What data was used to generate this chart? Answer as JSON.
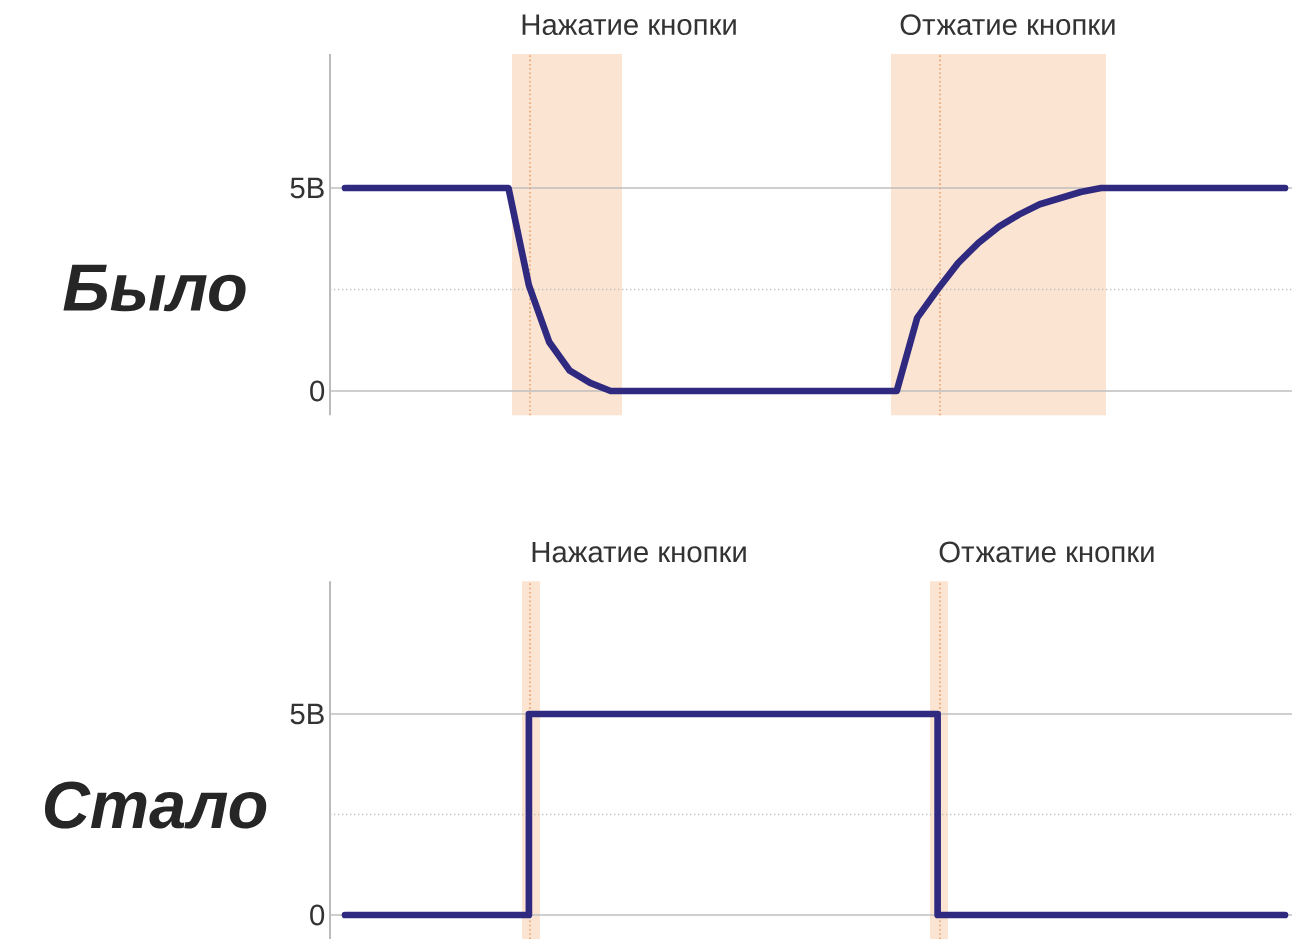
{
  "chart_data": [
    {
      "type": "line",
      "ylabel": "Было",
      "color": "#2f2a80",
      "grid": "y",
      "tick_labels": "y",
      "categories": [
        null,
        null,
        null,
        null,
        null,
        null,
        null,
        null,
        null,
        null,
        null,
        null,
        null,
        null,
        null,
        null,
        null,
        null,
        null,
        null,
        null,
        null,
        null,
        null,
        null,
        null,
        null,
        null,
        null,
        null,
        null,
        null,
        null,
        null,
        null,
        null,
        null,
        null,
        null,
        null,
        null,
        null,
        null,
        null,
        null,
        null,
        null
      ],
      "values": [
        5,
        5,
        5,
        5,
        5,
        5,
        5,
        5,
        5,
        2.6,
        1.2,
        0.5,
        0.2,
        0,
        0,
        0,
        0,
        0,
        0,
        0,
        0,
        0,
        0,
        0,
        0,
        0,
        0,
        0,
        1.8,
        2.5,
        3.15,
        3.65,
        4.05,
        4.35,
        4.6,
        4.75,
        4.9,
        5,
        5,
        5,
        5,
        5,
        5,
        5,
        5,
        5,
        5
      ],
      "ylim": [
        -0.6,
        8.3
      ],
      "yticks": [
        0,
        {
          "value": 5,
          "label": "5В"
        }
      ],
      "ref_lines": [
        {
          "axis": "y",
          "value": 2.5,
          "color": "#bfbfbf",
          "line_style": "dotted"
        }
      ],
      "annotations": [
        "Нажатие кнопки",
        "Отжатие кнопки"
      ]
    },
    {
      "type": "step",
      "ylabel": "Стало",
      "color": "#2f2a80",
      "grid": "y",
      "tick_labels": "y",
      "categories": [
        null,
        null,
        null,
        null,
        null,
        null,
        null,
        null,
        null,
        null,
        null,
        null,
        null,
        null,
        null,
        null,
        null,
        null,
        null,
        null,
        null,
        null,
        null,
        null,
        null,
        null,
        null,
        null,
        null,
        null,
        null,
        null,
        null,
        null,
        null,
        null,
        null,
        null,
        null,
        null,
        null,
        null,
        null,
        null,
        null,
        null,
        null
      ],
      "values": [
        0,
        0,
        0,
        0,
        0,
        0,
        0,
        0,
        0,
        5,
        5,
        5,
        5,
        5,
        5,
        5,
        5,
        5,
        5,
        5,
        5,
        5,
        5,
        5,
        5,
        5,
        5,
        5,
        5,
        0,
        0,
        0,
        0,
        0,
        0,
        0,
        0,
        0,
        0,
        0,
        0,
        0,
        0,
        0,
        0,
        0,
        0
      ],
      "ylim": [
        -0.6,
        8.3
      ],
      "yticks": [
        0,
        {
          "value": 5,
          "label": "5В"
        }
      ],
      "ref_lines": [
        {
          "axis": "y",
          "value": 2.5,
          "color": "#bfbfbf",
          "line_style": "dotted"
        }
      ],
      "annotations": [
        "Нажатие кнопки",
        "Отжатие кнопки"
      ]
    }
  ]
}
